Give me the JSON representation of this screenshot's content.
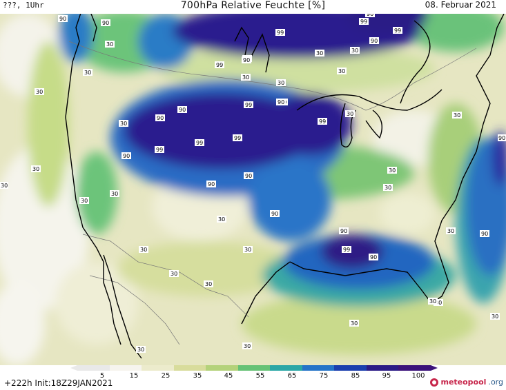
{
  "header": {
    "left": "???, 1Uhr",
    "title": "700hPa Relative Feuchte [%]",
    "date": "08. Februar 2021"
  },
  "map": {
    "labels_99": [
      "99",
      "99",
      "99",
      "99",
      "99",
      "99",
      "99",
      "99",
      "99",
      "99",
      "99"
    ],
    "labels_90": [
      "90",
      "90",
      "90",
      "90",
      "90",
      "90",
      "90",
      "90",
      "90",
      "90",
      "90",
      "90",
      "90",
      "90",
      "90",
      "90",
      "90",
      "90"
    ],
    "labels_30": [
      "30",
      "30",
      "30",
      "30",
      "30",
      "30",
      "30",
      "30",
      "30",
      "30",
      "30",
      "30",
      "30",
      "30",
      "30",
      "30",
      "30",
      "30",
      "30",
      "30",
      "30",
      "30",
      "30",
      "30",
      "30",
      "30",
      "30",
      "30",
      "30"
    ]
  },
  "legend": {
    "ticks": [
      "5",
      "15",
      "25",
      "35",
      "45",
      "55",
      "65",
      "75",
      "85",
      "95",
      "100"
    ],
    "colors": [
      "#e9e9e9",
      "#f6f4ee",
      "#ecebcc",
      "#d8dc9c",
      "#b4d27a",
      "#66c276",
      "#2ba7a6",
      "#2574c8",
      "#1b3fae",
      "#2b1a86",
      "#3b127a"
    ]
  },
  "footer": {
    "run": "+222h  Init:18Z29JAN2021",
    "brand_name": "meteopool",
    "brand_tld": ".org"
  }
}
